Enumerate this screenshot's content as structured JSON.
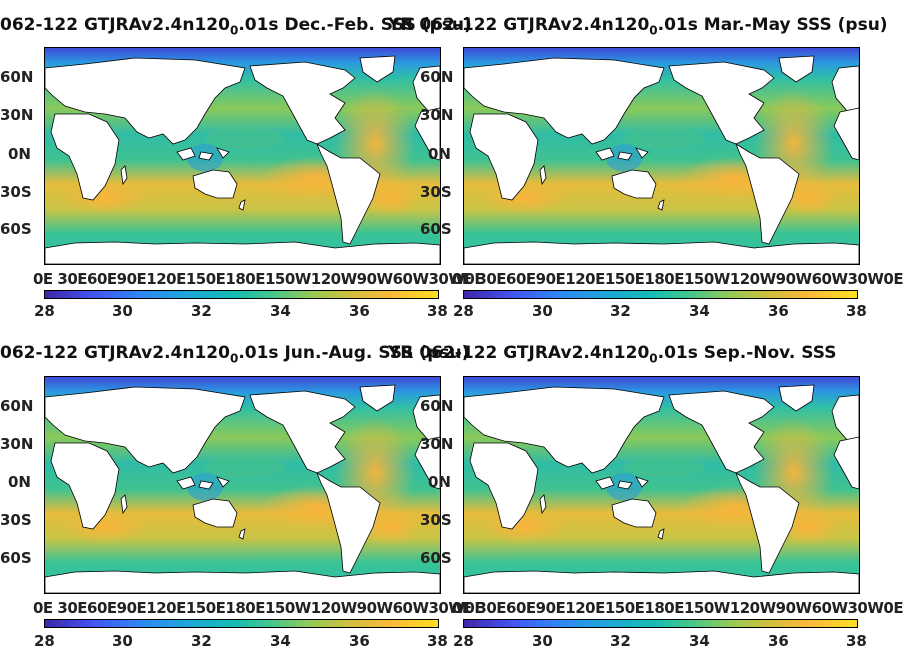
{
  "panels": [
    {
      "title_pre": "062-122 GTJRAv2.4n120",
      "title_sub": "0",
      "title_post": ".01s Dec.-Feb. SSS (psu)"
    },
    {
      "title_pre": "YR 062-122 GTJRAv2.4n120",
      "title_sub": "0",
      "title_post": ".01s Mar.-May SSS (psu)"
    },
    {
      "title_pre": "062-122 GTJRAv2.4n120",
      "title_sub": "0",
      "title_post": ".01s Jun.-Aug. SSS (psu)"
    },
    {
      "title_pre": "YR 062-122 GTJRAv2.4n120",
      "title_sub": "0",
      "title_post": ".01s Sep.-Nov. SSS"
    }
  ],
  "lat_labels": [
    "60N",
    "30N",
    "0N",
    "30S",
    "60S"
  ],
  "lon_labels": "0E 30E60E90E120E150E180E150W120W90W60W30W0E",
  "colorbar_ticks": [
    "28",
    "30",
    "32",
    "34",
    "36",
    "38"
  ],
  "colorbar": {
    "min": 28,
    "max": 38,
    "colormap": "parula"
  },
  "colors": {
    "land": "#ffffff",
    "ocean_salty": "#f5b83c",
    "ocean_fresh": "#2f5ad8",
    "ocean_mid": "#2bb9a8"
  }
}
